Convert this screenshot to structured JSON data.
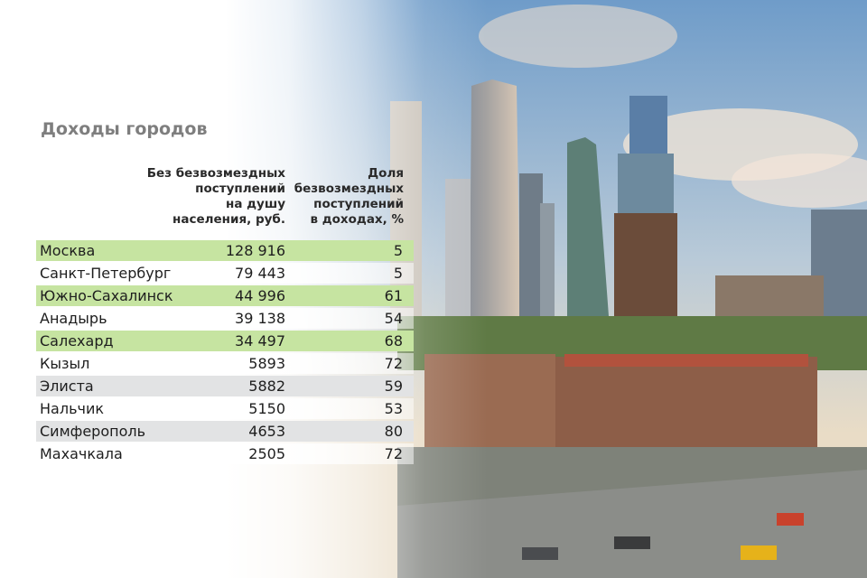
{
  "chart_data": {
    "type": "table",
    "title": "Доходы городов",
    "columns": [
      "Без безвозмездных поступлений на душу населения, руб.",
      "Доля безвозмездных поступлений в доходах, %"
    ],
    "column_heads": {
      "income": "Без безвозмездных\nпоступлений\nна душу\nнаселения, руб.",
      "share": "Доля\nбезвозмездных\nпоступлений\nв доходах, %"
    },
    "rows": [
      {
        "city": "Москва",
        "income": "128 916",
        "share": "5",
        "style": "green"
      },
      {
        "city": "Санкт-Петербург",
        "income": "79 443",
        "share": "5",
        "style": "white"
      },
      {
        "city": "Южно-Сахалинск",
        "income": "44 996",
        "share": "61",
        "style": "green"
      },
      {
        "city": "Анадырь",
        "income": "39 138",
        "share": "54",
        "style": "white"
      },
      {
        "city": "Салехард",
        "income": "34 497",
        "share": "68",
        "style": "green"
      },
      {
        "city": "Кызыл",
        "income": "5893",
        "share": "72",
        "style": "white"
      },
      {
        "city": "Элиста",
        "income": "5882",
        "share": "59",
        "style": "gray"
      },
      {
        "city": "Нальчик",
        "income": "5150",
        "share": "53",
        "style": "white"
      },
      {
        "city": "Симферополь",
        "income": "4653",
        "share": "80",
        "style": "gray"
      },
      {
        "city": "Махачкала",
        "income": "2505",
        "share": "72",
        "style": "white"
      }
    ]
  },
  "colors": {
    "green_row": "#c6e4a1",
    "gray_row": "#e2e3e4",
    "white_row": "#ffffff",
    "title": "#7e7e7e"
  },
  "background_image": "Moscow City skyscrapers and street view from above"
}
